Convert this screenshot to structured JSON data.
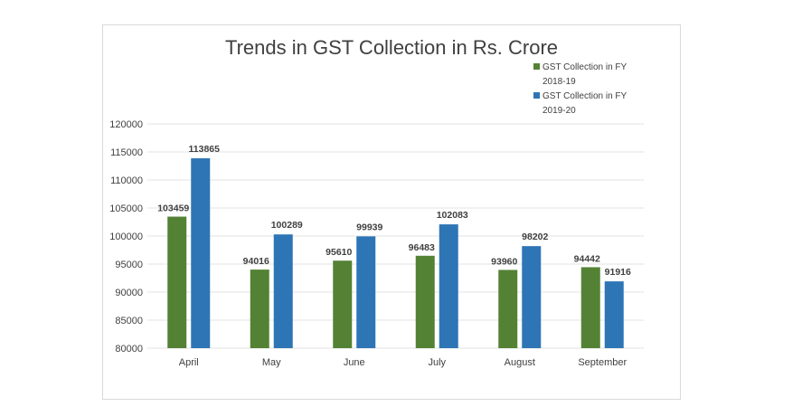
{
  "chart_data": {
    "type": "bar",
    "title": "Trends in GST Collection in Rs. Crore",
    "xlabel": "",
    "ylabel": "",
    "categories": [
      "April",
      "May",
      "June",
      "July",
      "August",
      "September"
    ],
    "series": [
      {
        "name": "GST Collection in FY 2018-19",
        "legend_lines": [
          "GST Collection in FY",
          "2018-19"
        ],
        "color": "#548235",
        "values": [
          103459,
          94016,
          95610,
          96483,
          93960,
          94442
        ]
      },
      {
        "name": "GST Collection in FY 2019-20",
        "legend_lines": [
          "GST Collection in FY",
          "2019-20"
        ],
        "color": "#2e75b6",
        "values": [
          113865,
          100289,
          99939,
          102083,
          98202,
          91916
        ]
      }
    ],
    "ylim": [
      80000,
      120000
    ],
    "yticks": [
      80000,
      85000,
      90000,
      95000,
      100000,
      105000,
      110000,
      115000,
      120000
    ],
    "grid": true,
    "legend_position": "top-right"
  }
}
